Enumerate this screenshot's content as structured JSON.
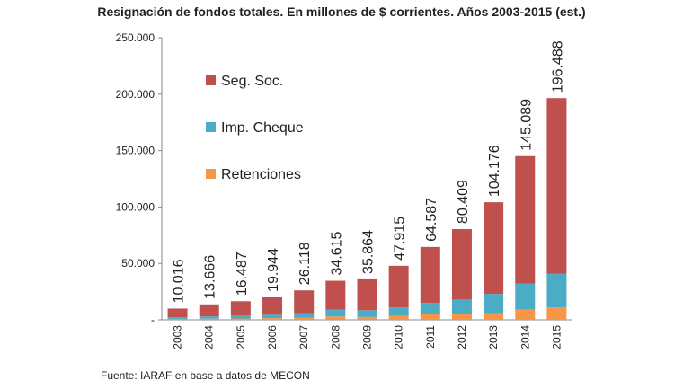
{
  "chart_data": {
    "type": "stacked-bar",
    "title": "Resignación de fondos totales. En millones de $ corrientes. Años 2003-2015 (est.)",
    "source": "Fuente: IARAF en base a datos de MECON",
    "categories": [
      "2003",
      "2004",
      "2005",
      "2006",
      "2007",
      "2008",
      "2009",
      "2010",
      "2011",
      "2012",
      "2013",
      "2014",
      "2015"
    ],
    "series": [
      {
        "name": "Retenciones",
        "color": "#f79646",
        "values": [
          800,
          1000,
          1200,
          1500,
          2000,
          3000,
          2500,
          3500,
          5000,
          5000,
          6000,
          9000,
          11000
        ]
      },
      {
        "name": "Imp. Cheque",
        "color": "#4bacc6",
        "values": [
          1500,
          2000,
          2500,
          3000,
          4000,
          6000,
          6000,
          7500,
          10000,
          13000,
          17000,
          23000,
          30000
        ]
      },
      {
        "name": "Seg. Soc.",
        "color": "#c0504d",
        "values": [
          7700,
          10700,
          12800,
          15400,
          20100,
          25600,
          27400,
          36900,
          49600,
          62400,
          81200,
          113100,
          155500
        ]
      }
    ],
    "totals": {
      "values": [
        10016,
        13666,
        16487,
        19944,
        26118,
        34615,
        35864,
        47915,
        64587,
        80409,
        104176,
        145089,
        196488
      ],
      "value_labels": [
        "10.016",
        "13.666",
        "16.487",
        "19.944",
        "26.118",
        "34.615",
        "35.864",
        "47.915",
        "64.587",
        "80.409",
        "104.176",
        "145.089",
        "196.488"
      ]
    },
    "ylim": [
      0,
      250000
    ],
    "yticks": [
      {
        "value": 0,
        "label": "-"
      },
      {
        "value": 50000,
        "label": "50.000"
      },
      {
        "value": 100000,
        "label": "100.000"
      },
      {
        "value": 150000,
        "label": "150.000"
      },
      {
        "value": 200000,
        "label": "200.000"
      },
      {
        "value": 250000,
        "label": "250.000"
      }
    ]
  }
}
